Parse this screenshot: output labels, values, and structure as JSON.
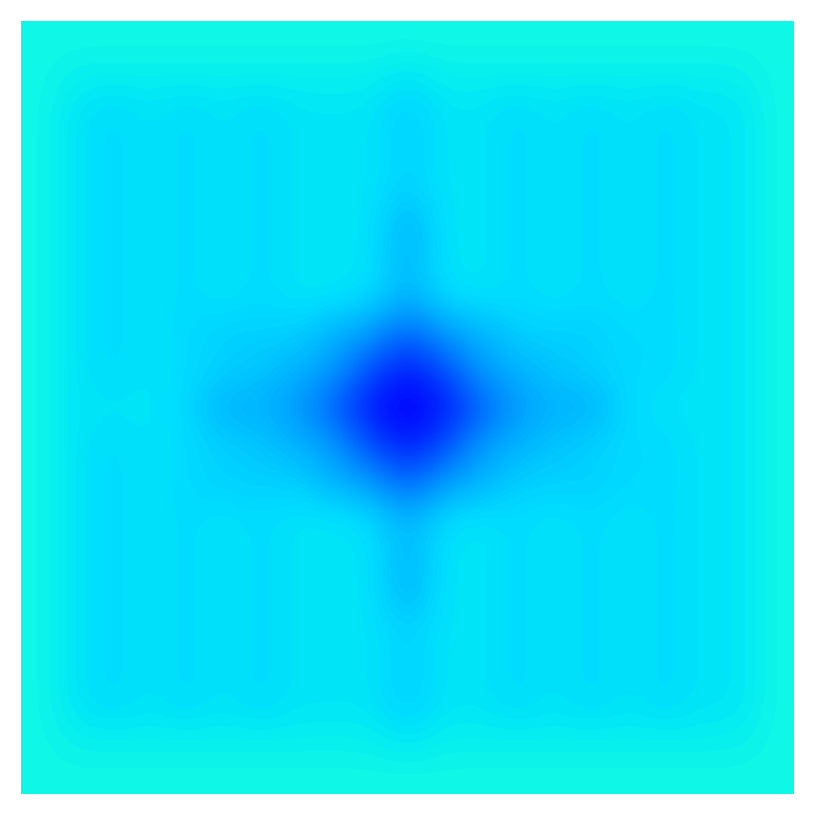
{
  "chart_data": {
    "type": "heatmap",
    "color": "jet",
    "zlim": [
      0,
      1
    ],
    "tick_labels": false,
    "cells": [
      [
        0.37,
        0.37,
        0.37,
        0.37,
        0.37,
        0.37,
        0.37,
        0.37,
        0.37,
        0.37,
        0.37,
        0.37,
        0.37,
        0.37,
        0.37,
        0.37,
        0.37,
        0.37,
        0.37,
        0.37,
        0.37
      ],
      [
        0.37,
        0.36,
        0.36,
        0.36,
        0.36,
        0.36,
        0.36,
        0.36,
        0.36,
        0.36,
        0.35,
        0.36,
        0.36,
        0.36,
        0.36,
        0.36,
        0.36,
        0.36,
        0.36,
        0.36,
        0.37
      ],
      [
        0.37,
        0.35,
        0.34,
        0.35,
        0.34,
        0.35,
        0.34,
        0.35,
        0.35,
        0.35,
        0.33,
        0.35,
        0.35,
        0.34,
        0.35,
        0.34,
        0.35,
        0.34,
        0.35,
        0.35,
        0.37
      ],
      [
        0.37,
        0.35,
        0.34,
        0.35,
        0.34,
        0.35,
        0.34,
        0.35,
        0.35,
        0.35,
        0.33,
        0.35,
        0.35,
        0.34,
        0.35,
        0.34,
        0.35,
        0.34,
        0.35,
        0.35,
        0.37
      ],
      [
        0.37,
        0.35,
        0.34,
        0.35,
        0.34,
        0.35,
        0.34,
        0.35,
        0.35,
        0.35,
        0.33,
        0.35,
        0.35,
        0.34,
        0.35,
        0.34,
        0.35,
        0.34,
        0.35,
        0.35,
        0.37
      ],
      [
        0.37,
        0.35,
        0.34,
        0.35,
        0.34,
        0.35,
        0.34,
        0.35,
        0.35,
        0.35,
        0.3,
        0.35,
        0.35,
        0.34,
        0.35,
        0.34,
        0.35,
        0.34,
        0.35,
        0.35,
        0.37
      ],
      [
        0.37,
        0.35,
        0.34,
        0.35,
        0.34,
        0.35,
        0.34,
        0.35,
        0.35,
        0.35,
        0.3,
        0.35,
        0.35,
        0.34,
        0.35,
        0.34,
        0.35,
        0.34,
        0.35,
        0.35,
        0.37
      ],
      [
        0.37,
        0.35,
        0.34,
        0.35,
        0.34,
        0.35,
        0.34,
        0.35,
        0.35,
        0.34,
        0.3,
        0.34,
        0.35,
        0.34,
        0.35,
        0.34,
        0.35,
        0.34,
        0.35,
        0.35,
        0.37
      ],
      [
        0.37,
        0.35,
        0.34,
        0.35,
        0.34,
        0.33,
        0.33,
        0.33,
        0.3,
        0.28,
        0.22,
        0.28,
        0.3,
        0.33,
        0.33,
        0.33,
        0.34,
        0.34,
        0.35,
        0.35,
        0.37
      ],
      [
        0.37,
        0.35,
        0.34,
        0.35,
        0.34,
        0.33,
        0.32,
        0.3,
        0.28,
        0.2,
        0.15,
        0.2,
        0.28,
        0.3,
        0.32,
        0.33,
        0.34,
        0.34,
        0.35,
        0.35,
        0.37
      ],
      [
        0.37,
        0.35,
        0.35,
        0.35,
        0.34,
        0.3,
        0.3,
        0.28,
        0.22,
        0.15,
        0.12,
        0.15,
        0.22,
        0.28,
        0.3,
        0.3,
        0.34,
        0.35,
        0.35,
        0.35,
        0.37
      ],
      [
        0.37,
        0.35,
        0.34,
        0.35,
        0.34,
        0.33,
        0.32,
        0.3,
        0.28,
        0.2,
        0.15,
        0.2,
        0.28,
        0.3,
        0.32,
        0.33,
        0.34,
        0.34,
        0.35,
        0.35,
        0.37
      ],
      [
        0.37,
        0.35,
        0.34,
        0.35,
        0.34,
        0.33,
        0.33,
        0.33,
        0.3,
        0.28,
        0.22,
        0.28,
        0.3,
        0.33,
        0.33,
        0.33,
        0.34,
        0.34,
        0.35,
        0.35,
        0.37
      ],
      [
        0.37,
        0.35,
        0.34,
        0.35,
        0.34,
        0.35,
        0.34,
        0.35,
        0.35,
        0.34,
        0.3,
        0.34,
        0.35,
        0.34,
        0.35,
        0.34,
        0.35,
        0.34,
        0.35,
        0.35,
        0.37
      ],
      [
        0.37,
        0.35,
        0.34,
        0.35,
        0.34,
        0.35,
        0.34,
        0.35,
        0.35,
        0.35,
        0.3,
        0.35,
        0.35,
        0.34,
        0.35,
        0.34,
        0.35,
        0.34,
        0.35,
        0.35,
        0.37
      ],
      [
        0.37,
        0.35,
        0.34,
        0.35,
        0.34,
        0.35,
        0.34,
        0.35,
        0.35,
        0.35,
        0.3,
        0.35,
        0.35,
        0.34,
        0.35,
        0.34,
        0.35,
        0.34,
        0.35,
        0.35,
        0.37
      ],
      [
        0.37,
        0.35,
        0.34,
        0.35,
        0.34,
        0.35,
        0.34,
        0.35,
        0.35,
        0.35,
        0.33,
        0.35,
        0.35,
        0.34,
        0.35,
        0.34,
        0.35,
        0.34,
        0.35,
        0.35,
        0.37
      ],
      [
        0.37,
        0.35,
        0.34,
        0.35,
        0.34,
        0.35,
        0.34,
        0.35,
        0.35,
        0.35,
        0.33,
        0.35,
        0.35,
        0.34,
        0.35,
        0.34,
        0.35,
        0.34,
        0.35,
        0.35,
        0.37
      ],
      [
        0.37,
        0.35,
        0.34,
        0.35,
        0.34,
        0.35,
        0.34,
        0.35,
        0.35,
        0.35,
        0.33,
        0.35,
        0.35,
        0.34,
        0.35,
        0.34,
        0.35,
        0.34,
        0.35,
        0.35,
        0.37
      ],
      [
        0.37,
        0.36,
        0.36,
        0.36,
        0.36,
        0.36,
        0.36,
        0.36,
        0.36,
        0.36,
        0.35,
        0.36,
        0.36,
        0.36,
        0.36,
        0.36,
        0.36,
        0.36,
        0.36,
        0.36,
        0.37
      ],
      [
        0.37,
        0.37,
        0.37,
        0.37,
        0.37,
        0.37,
        0.37,
        0.37,
        0.37,
        0.37,
        0.37,
        0.37,
        0.37,
        0.37,
        0.37,
        0.37,
        0.37,
        0.37,
        0.37,
        0.37,
        0.37
      ]
    ]
  }
}
